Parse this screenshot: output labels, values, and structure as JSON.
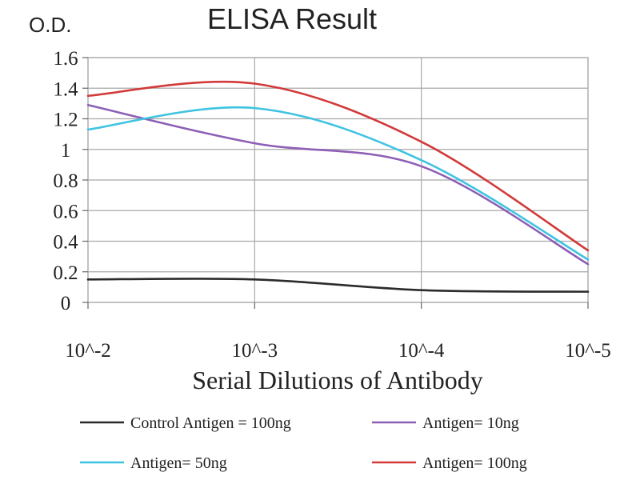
{
  "chart_data": {
    "type": "line",
    "title": "ELISA Result",
    "ylabel": "O.D.",
    "xlabel": "Serial Dilutions of Antibody",
    "x_tick_labels": [
      "10^-2",
      "10^-3",
      "10^-4",
      "10^-5"
    ],
    "x": [
      0.01,
      0.001,
      0.0001,
      1e-05
    ],
    "x_scale": "log",
    "ylim": [
      0,
      1.6
    ],
    "y_ticks": [
      0,
      0.2,
      0.4,
      0.6,
      0.8,
      1,
      1.2,
      1.4,
      1.6
    ],
    "y_tick_labels": [
      "0",
      "0.2",
      "0.4",
      "0.6",
      "0.8",
      "1",
      "1.2",
      "1.4",
      "1.6"
    ],
    "grid": true,
    "legend_position": "bottom",
    "series": [
      {
        "name": "Control Antigen = 100ng",
        "color": "#2b2b2b",
        "values": [
          0.15,
          0.15,
          0.08,
          0.07
        ]
      },
      {
        "name": "Antigen= 10ng",
        "color": "#8e5fb5",
        "values": [
          1.29,
          1.04,
          0.89,
          0.25
        ]
      },
      {
        "name": "Antigen= 50ng",
        "color": "#3ec3e0",
        "values": [
          1.13,
          1.27,
          0.93,
          0.28
        ]
      },
      {
        "name": "Antigen= 100ng",
        "color": "#d23a3a",
        "values": [
          1.35,
          1.43,
          1.05,
          0.34
        ]
      }
    ]
  }
}
